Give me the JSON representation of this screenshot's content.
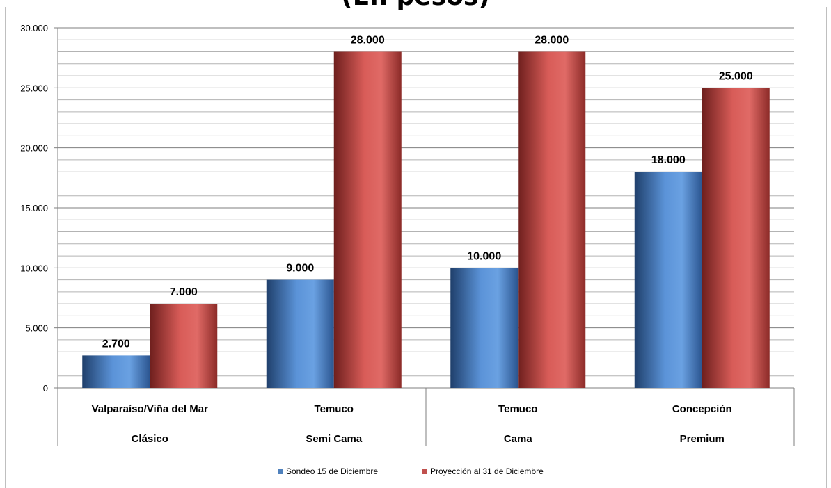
{
  "chart_data": {
    "type": "bar",
    "title": "(En pesos)",
    "xlabel": "",
    "ylabel": "",
    "ylim": [
      0,
      30000
    ],
    "y_ticks": [
      0,
      5000,
      10000,
      15000,
      20000,
      25000,
      30000
    ],
    "y_tick_labels": [
      "0",
      "5.000",
      "10.000",
      "15.000",
      "20.000",
      "25.000",
      "30.000"
    ],
    "grid": true,
    "legend_position": "bottom",
    "categories": [
      [
        "Valparaíso/Viña del Mar",
        "Clásico"
      ],
      [
        "Temuco",
        "Semi Cama"
      ],
      [
        "Temuco",
        "Cama"
      ],
      [
        "Concepción",
        "Premium"
      ]
    ],
    "series": [
      {
        "name": "Sondeo 15 de Diciembre",
        "values": [
          2700,
          9000,
          10000,
          18000
        ],
        "labels": [
          "2.700",
          "9.000",
          "10.000",
          "18.000"
        ],
        "color": "#4f81bd"
      },
      {
        "name": "Proyección al 31 de Diciembre",
        "values": [
          7000,
          28000,
          28000,
          25000
        ],
        "labels": [
          "7.000",
          "28.000",
          "28.000",
          "25.000"
        ],
        "color": "#c0504d"
      }
    ]
  }
}
